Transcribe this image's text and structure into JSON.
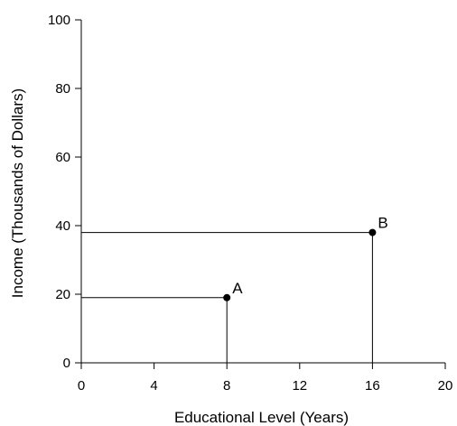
{
  "chart_data": {
    "type": "scatter",
    "title": "",
    "xlabel": "Educational Level (Years)",
    "ylabel": "Income (Thousands of Dollars)",
    "xlim": [
      0,
      20
    ],
    "ylim": [
      0,
      100
    ],
    "xticks": [
      0,
      4,
      8,
      12,
      16,
      20
    ],
    "yticks": [
      0,
      20,
      40,
      60,
      80,
      100
    ],
    "grid": false,
    "points": [
      {
        "label": "A",
        "x": 8,
        "y": 19
      },
      {
        "label": "B",
        "x": 16,
        "y": 38
      }
    ],
    "guide_lines": true,
    "colors": {
      "ink": "#000000",
      "background": "#ffffff"
    }
  }
}
